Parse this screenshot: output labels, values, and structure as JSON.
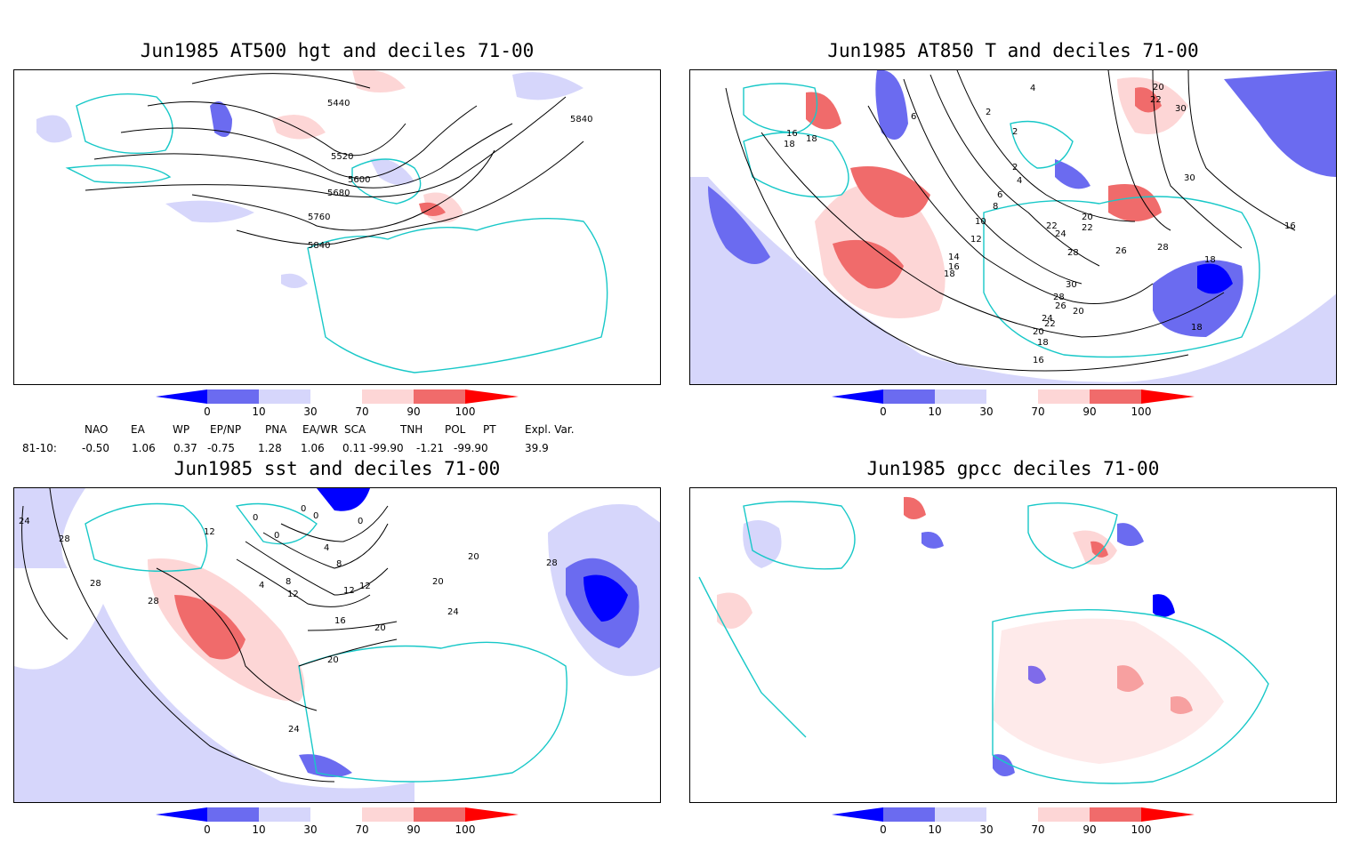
{
  "colors": {
    "below_0": "#0000ff",
    "d0_10": "#6b6bf0",
    "d10_30": "#d6d6fb",
    "d70_90": "#fdd6d6",
    "d90_100": "#f06b6b",
    "above_100": "#ff0000",
    "coast": "#18c8c8",
    "contour": "#000000"
  },
  "colorbar_ticks": [
    "0",
    "10",
    "30",
    "70",
    "90",
    "100"
  ],
  "panels": [
    {
      "title": "Jun1985 AT500 hgt and deciles 71-00",
      "contour_labels": [
        "5440",
        "5520",
        "5600",
        "5680",
        "5760",
        "5840",
        "5840"
      ]
    },
    {
      "title": "Jun1985 AT850 T and deciles 71-00",
      "contour_labels": [
        "4",
        "6",
        "2",
        "2",
        "2",
        "4",
        "6",
        "8",
        "10",
        "12",
        "14",
        "16",
        "18",
        "18",
        "18",
        "20",
        "20",
        "22",
        "22",
        "24",
        "24",
        "26",
        "26",
        "28",
        "28",
        "28",
        "30",
        "30",
        "30",
        "16",
        "18",
        "16",
        "18",
        "20",
        "22",
        "18",
        "20",
        "22",
        "16"
      ]
    },
    {
      "title": "Jun1985 sst and deciles 71-00",
      "contour_labels": [
        "24",
        "28",
        "28",
        "28",
        "0",
        "0",
        "0",
        "0",
        "4",
        "4",
        "8",
        "8",
        "12",
        "12",
        "12",
        "16",
        "20",
        "20",
        "20",
        "20",
        "24",
        "24",
        "28",
        "12",
        "0"
      ]
    },
    {
      "title": "Jun1985 gpcc deciles 71-00",
      "contour_labels": []
    }
  ],
  "indices": {
    "headers": [
      "NAO",
      "EA",
      "WP",
      "EP/NP",
      "PNA",
      "EA/WR",
      "SCA",
      "TNH",
      "POL",
      "PT",
      "Expl. Var."
    ],
    "row_label": "81-10:",
    "values": [
      "-0.50",
      "1.06",
      "0.37",
      "-0.75",
      "1.28",
      "1.06",
      "0.11",
      "-99.90",
      "-1.21",
      "-99.90",
      "39.9"
    ]
  }
}
